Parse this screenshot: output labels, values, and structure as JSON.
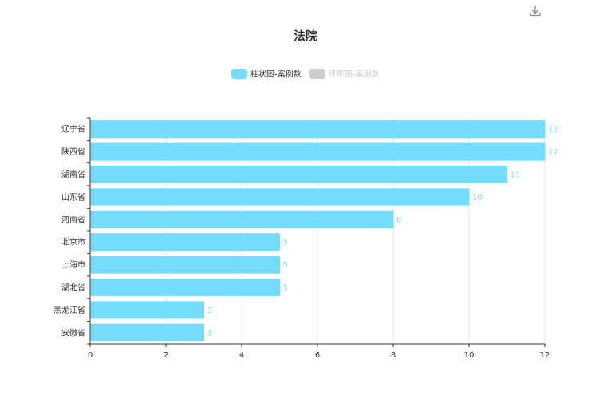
{
  "toolbar": {
    "download_icon": "download-icon"
  },
  "chart_data": {
    "type": "bar",
    "orientation": "horizontal",
    "title": "法院",
    "legend": {
      "placement": "top-center",
      "items": [
        {
          "label": "柱状图-案例数",
          "color": "#74dcff",
          "active": true
        },
        {
          "label": "环形图-案例数",
          "color": "#cccccc",
          "active": false
        }
      ]
    },
    "categories": [
      "辽宁省",
      "陕西省",
      "湖南省",
      "山东省",
      "河南省",
      "北京市",
      "上海市",
      "湖北省",
      "黑龙江省",
      "安徽省"
    ],
    "series": [
      {
        "name": "柱状图-案例数",
        "values": [
          12,
          12,
          11,
          10,
          8,
          5,
          5,
          5,
          3,
          3
        ],
        "color": "#74dcff"
      }
    ],
    "xlim": [
      0,
      12
    ],
    "xticks": [
      0,
      2,
      4,
      6,
      8,
      10,
      12
    ],
    "grid": true,
    "data_labels": true,
    "label_color": "#74dcff"
  }
}
